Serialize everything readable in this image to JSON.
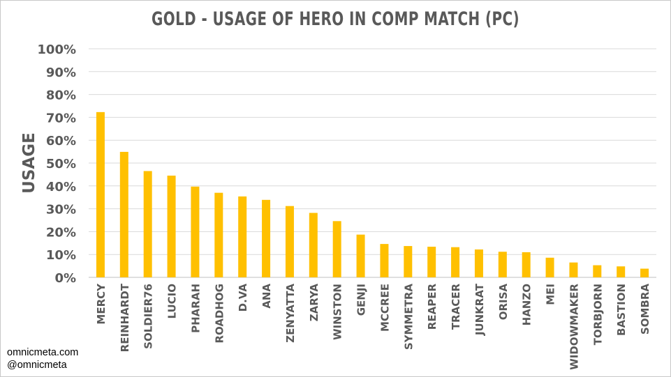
{
  "chart_data": {
    "type": "bar",
    "title": "GOLD - USAGE OF HERO IN COMP MATCH (PC)",
    "ylabel": "USAGE",
    "xlabel": "",
    "ylim": [
      0,
      100
    ],
    "y_ticks": [
      "0%",
      "10%",
      "20%",
      "30%",
      "40%",
      "50%",
      "60%",
      "70%",
      "80%",
      "90%",
      "100%"
    ],
    "grid": true,
    "legend": "none",
    "bar_color": "#FFC000",
    "categories": [
      "MERCY",
      "REINHARDT",
      "SOLDIER76",
      "LUCIO",
      "PHARAH",
      "ROADHOG",
      "D.VA",
      "ANA",
      "ZENYATTA",
      "ZARYA",
      "WINSTON",
      "GENJI",
      "MCCREE",
      "SYMMETRA",
      "REAPER",
      "TRACER",
      "JUNKRAT",
      "ORISA",
      "HANZO",
      "MEI",
      "WIDOWMAKER",
      "TORBJORN",
      "BASTION",
      "SOMBRA"
    ],
    "values": [
      72.3,
      54.9,
      46.5,
      44.5,
      39.7,
      37.0,
      35.4,
      33.9,
      31.2,
      28.2,
      24.6,
      18.7,
      14.6,
      13.7,
      13.4,
      13.2,
      12.2,
      11.2,
      11.0,
      8.6,
      6.5,
      5.3,
      4.8,
      3.8
    ]
  },
  "credits": {
    "site": "omnicmeta.com",
    "handle": "@omnicmeta"
  }
}
